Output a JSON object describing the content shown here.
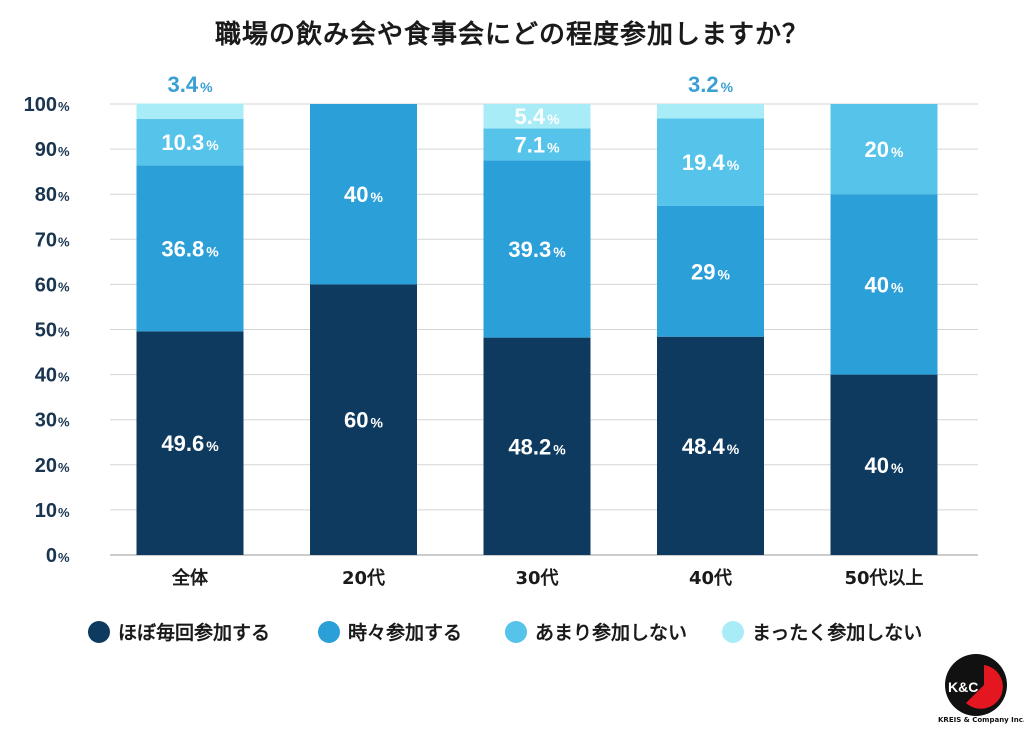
{
  "title": "職場の飲み会や食事会にどの程度参加しますか？",
  "chart_data": {
    "type": "bar",
    "stacked": true,
    "categories": [
      "全体",
      "20代",
      "30代",
      "40代",
      "50代以上"
    ],
    "series": [
      {
        "name": "ほぼ毎回参加する",
        "color": "#0d3a5e",
        "values": [
          49.6,
          60,
          48.2,
          48.4,
          40
        ],
        "labels": [
          "49.6",
          "60",
          "48.2",
          "48.4",
          "40"
        ]
      },
      {
        "name": "時々参加する",
        "color": "#2b9fd8",
        "values": [
          36.8,
          40,
          39.3,
          29,
          40
        ],
        "labels": [
          "36.8",
          "40",
          "39.3",
          "29",
          "40"
        ]
      },
      {
        "name": "あまり参加しない",
        "color": "#55c3ea",
        "values": [
          10.3,
          0,
          7.1,
          19.4,
          20
        ],
        "labels": [
          "10.3",
          "",
          "7.1",
          "19.4",
          "20"
        ]
      },
      {
        "name": "まったく参加しない",
        "color": "#a7ecf7",
        "values": [
          3.4,
          0,
          5.4,
          3.2,
          0
        ],
        "labels": [
          "3.4",
          "",
          "5.4",
          "3.2",
          ""
        ]
      }
    ],
    "ylim": [
      0,
      100
    ],
    "yticks": [
      "0",
      "10",
      "20",
      "30",
      "40",
      "50",
      "60",
      "70",
      "80",
      "90",
      "100"
    ],
    "unit": "%",
    "grid": true,
    "legend_position": "bottom"
  },
  "logo": {
    "mark": "K&C",
    "text": "KREIS & Company Inc.",
    "color": "#e4161f"
  }
}
